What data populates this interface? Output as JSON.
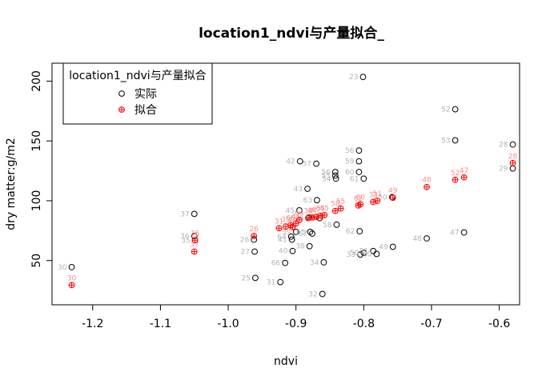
{
  "chart_data": {
    "type": "scatter",
    "title": "location1_ndvi与产量拟合_",
    "xlabel": "ndvi",
    "ylabel": "dry matter:g/m2",
    "xlim": [
      -1.26,
      -0.57
    ],
    "ylim": [
      13,
      215
    ],
    "x_ticks": [
      -1.2,
      -1.1,
      -1.0,
      -0.9,
      -0.8,
      -0.7,
      -0.6
    ],
    "x_tick_labels": [
      "-1.2",
      "-1.1",
      "-1.0",
      "-0.9",
      "-0.8",
      "-0.7",
      "-0.6"
    ],
    "y_ticks": [
      50,
      100,
      150,
      200
    ],
    "y_tick_labels": [
      "50",
      "100",
      "150",
      "200"
    ],
    "grid": false,
    "legend": {
      "title": "location1_ndvi与产量拟合",
      "placement": "top-left",
      "entries": [
        {
          "label": "实际",
          "marker": "open-circle",
          "color": "#000000"
        },
        {
          "label": "拟合",
          "marker": "circle-plus",
          "color": "#ff0000"
        }
      ]
    },
    "series": [
      {
        "name": "实际",
        "color": "#000000",
        "label_color": "#b3b3b3",
        "points": [
          {
            "x": -1.231,
            "y": 44.5,
            "label": "30"
          },
          {
            "x": -1.05,
            "y": 89.0,
            "label": "37"
          },
          {
            "x": -1.05,
            "y": 70.5,
            "label": "36"
          },
          {
            "x": -1.049,
            "y": 67.0,
            "label": "35"
          },
          {
            "x": -0.962,
            "y": 67.5,
            "label": "26"
          },
          {
            "x": -0.961,
            "y": 57.5,
            "label": "27"
          },
          {
            "x": -0.96,
            "y": 35.5,
            "label": "25"
          },
          {
            "x": -0.923,
            "y": 32.0,
            "label": "31"
          },
          {
            "x": -0.916,
            "y": 48.0,
            "label": "66"
          },
          {
            "x": -0.907,
            "y": 70.0,
            "label": "64"
          },
          {
            "x": -0.906,
            "y": 67.5,
            "label": "41"
          },
          {
            "x": -0.905,
            "y": 58.0,
            "label": "40"
          },
          {
            "x": -0.9,
            "y": 74.0,
            "label": "39"
          },
          {
            "x": -0.895,
            "y": 92.0,
            "label": "45"
          },
          {
            "x": -0.894,
            "y": 133.0,
            "label": "42"
          },
          {
            "x": -0.883,
            "y": 110.0,
            "label": "43"
          },
          {
            "x": -0.881,
            "y": 86.0,
            "label": "46"
          },
          {
            "x": -0.88,
            "y": 62.0,
            "label": "38"
          },
          {
            "x": -0.879,
            "y": 74.0,
            "label": "65"
          },
          {
            "x": -0.876,
            "y": 72.5,
            "label": "67"
          },
          {
            "x": -0.87,
            "y": 131.0,
            "label": "57"
          },
          {
            "x": -0.869,
            "y": 100.5,
            "label": "63"
          },
          {
            "x": -0.865,
            "y": 85.5,
            "label": "44"
          },
          {
            "x": -0.861,
            "y": 22.0,
            "label": "32"
          },
          {
            "x": -0.859,
            "y": 48.5,
            "label": "34"
          },
          {
            "x": -0.842,
            "y": 124.0,
            "label": "56"
          },
          {
            "x": -0.842,
            "y": 121.0,
            "label": "55"
          },
          {
            "x": -0.841,
            "y": 118.5,
            "label": "54"
          },
          {
            "x": -0.84,
            "y": 80.0,
            "label": "58"
          },
          {
            "x": -0.807,
            "y": 142.0,
            "label": "56"
          },
          {
            "x": -0.807,
            "y": 133.0,
            "label": "59"
          },
          {
            "x": -0.807,
            "y": 124.0,
            "label": "60"
          },
          {
            "x": -0.806,
            "y": 74.5,
            "label": "62"
          },
          {
            "x": -0.805,
            "y": 55.0,
            "label": "33"
          },
          {
            "x": -0.801,
            "y": 203.5,
            "label": "23"
          },
          {
            "x": -0.8,
            "y": 118.5,
            "label": "61"
          },
          {
            "x": -0.8,
            "y": 56.5,
            "label": "50"
          },
          {
            "x": -0.786,
            "y": 58.0,
            "label": "51"
          },
          {
            "x": -0.781,
            "y": 55.5,
            "label": "60"
          },
          {
            "x": -0.758,
            "y": 103.0,
            "label": "50"
          },
          {
            "x": -0.757,
            "y": 61.5,
            "label": "49"
          },
          {
            "x": -0.707,
            "y": 68.5,
            "label": "48"
          },
          {
            "x": -0.665,
            "y": 176.5,
            "label": "52"
          },
          {
            "x": -0.665,
            "y": 150.5,
            "label": "53"
          },
          {
            "x": -0.652,
            "y": 73.5,
            "label": "47"
          },
          {
            "x": -0.58,
            "y": 147.0,
            "label": "28"
          },
          {
            "x": -0.58,
            "y": 127.0,
            "label": "29"
          }
        ]
      },
      {
        "name": "拟合",
        "color": "#ff0000",
        "label_color": "#ff8c8c",
        "points": [
          {
            "x": -1.231,
            "y": 29.5,
            "label": "30"
          },
          {
            "x": -1.05,
            "y": 57.5,
            "label": "37"
          },
          {
            "x": -1.049,
            "y": 67.0,
            "label": "36"
          },
          {
            "x": -0.962,
            "y": 70.5,
            "label": "26"
          },
          {
            "x": -0.925,
            "y": 77.0,
            "label": "31"
          },
          {
            "x": -0.915,
            "y": 78.5,
            "label": "39"
          },
          {
            "x": -0.908,
            "y": 79.5,
            "label": "66"
          },
          {
            "x": -0.905,
            "y": 78.0,
            "label": "40"
          },
          {
            "x": -0.9,
            "y": 81.0,
            "label": "41"
          },
          {
            "x": -0.895,
            "y": 84.0,
            "label": "64"
          },
          {
            "x": -0.882,
            "y": 85.5,
            "label": "38"
          },
          {
            "x": -0.876,
            "y": 86.0,
            "label": "44"
          },
          {
            "x": -0.87,
            "y": 86.5,
            "label": "67"
          },
          {
            "x": -0.864,
            "y": 87.5,
            "label": "65"
          },
          {
            "x": -0.858,
            "y": 88.0,
            "label": "45"
          },
          {
            "x": -0.842,
            "y": 91.5,
            "label": "58"
          },
          {
            "x": -0.834,
            "y": 93.5,
            "label": "55"
          },
          {
            "x": -0.808,
            "y": 96.0,
            "label": "62"
          },
          {
            "x": -0.805,
            "y": 97.0,
            "label": "60"
          },
          {
            "x": -0.786,
            "y": 99.0,
            "label": "33"
          },
          {
            "x": -0.78,
            "y": 100.0,
            "label": "51"
          },
          {
            "x": -0.757,
            "y": 102.5,
            "label": "49"
          },
          {
            "x": -0.707,
            "y": 111.5,
            "label": "48"
          },
          {
            "x": -0.665,
            "y": 117.5,
            "label": "52"
          },
          {
            "x": -0.652,
            "y": 119.5,
            "label": "47"
          },
          {
            "x": -0.58,
            "y": 131.5,
            "label": "28"
          }
        ]
      }
    ]
  }
}
